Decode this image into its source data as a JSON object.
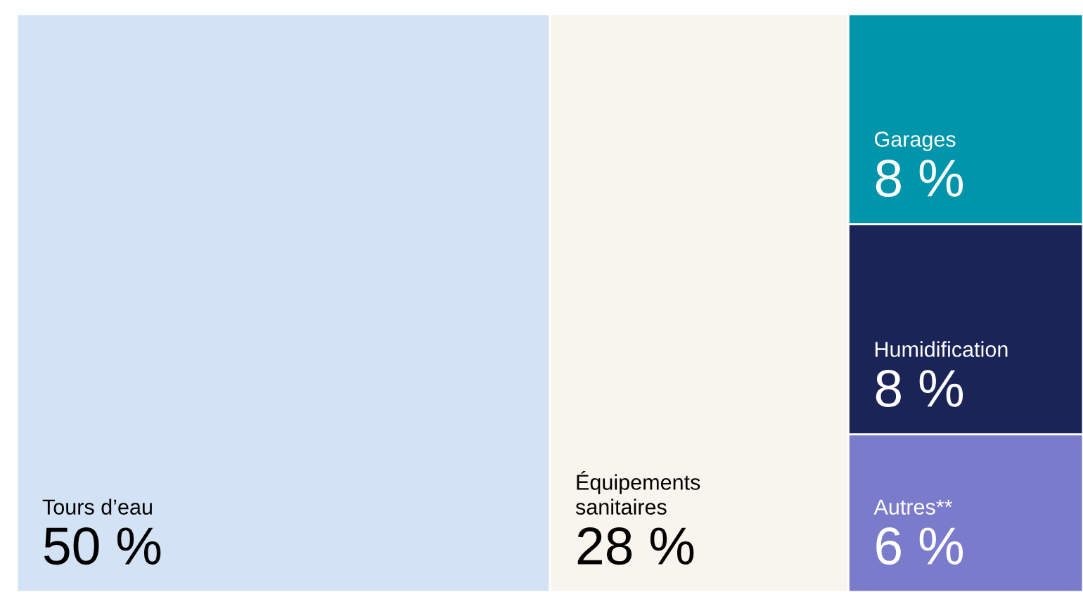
{
  "chart_data": {
    "type": "other",
    "categories": [
      "Tours d’eau",
      "Équipements\nsanitaires",
      "Garages",
      "Humidification",
      "Autres**"
    ],
    "values": [
      50,
      28,
      8,
      8,
      6
    ],
    "value_labels": [
      "50 %",
      "28 %",
      "8 %",
      "8 %",
      "6 %"
    ],
    "colors": [
      "#d3e2f4",
      "#f8f5ef",
      "#0095aa",
      "#1a2456",
      "#7b7bcc"
    ]
  }
}
